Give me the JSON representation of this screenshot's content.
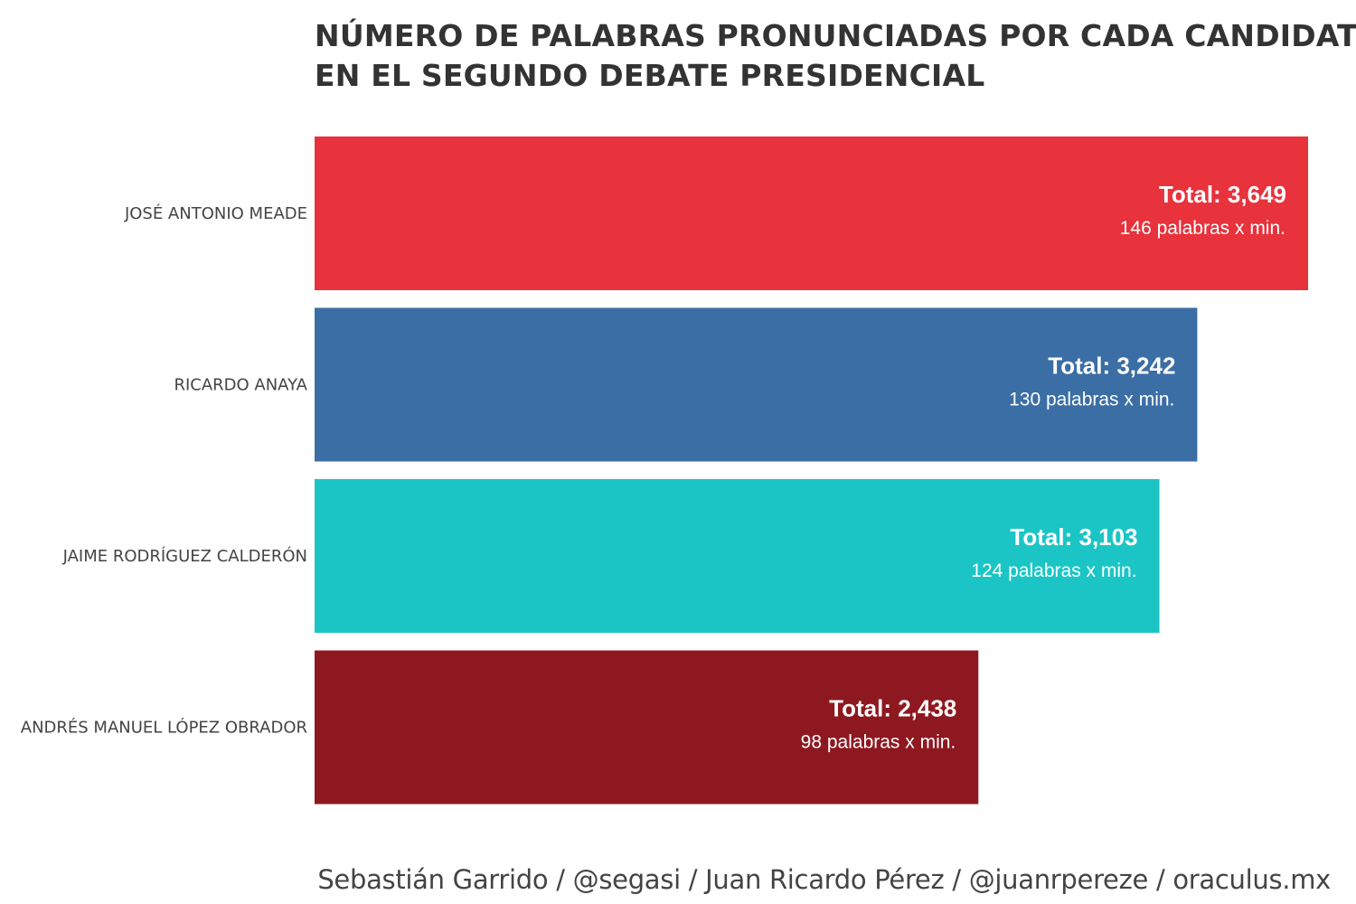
{
  "chart_data": {
    "type": "bar",
    "orientation": "horizontal",
    "title_lines": [
      "NÚMERO DE PALABRAS PRONUNCIADAS POR CADA CANDIDATO",
      "EN EL SEGUNDO DEBATE PRESIDENCIAL"
    ],
    "categories": [
      "JOSÉ ANTONIO MEADE",
      "RICARDO ANAYA",
      "JAIME RODRÍGUEZ CALDERÓN",
      "ANDRÉS MANUEL LÓPEZ OBRADOR"
    ],
    "values": [
      3649,
      3242,
      3103,
      2438
    ],
    "total_labels": [
      "Total: 3,649",
      "Total: 3,242",
      "Total: 3,103",
      "Total: 2,438"
    ],
    "rate_labels": [
      "146 palabras x min.",
      "130 palabras x min.",
      "124 palabras x min.",
      "98 palabras x min."
    ],
    "colors": [
      "#e8323c",
      "#3a6ea5",
      "#1cc5c5",
      "#8e1820"
    ],
    "xlim": [
      0,
      3649
    ],
    "grid": false,
    "legend": "none"
  },
  "caption": "Sebastián Garrido / @segasi / Juan Ricardo Pérez / @juanrpereze / oraculus.mx"
}
